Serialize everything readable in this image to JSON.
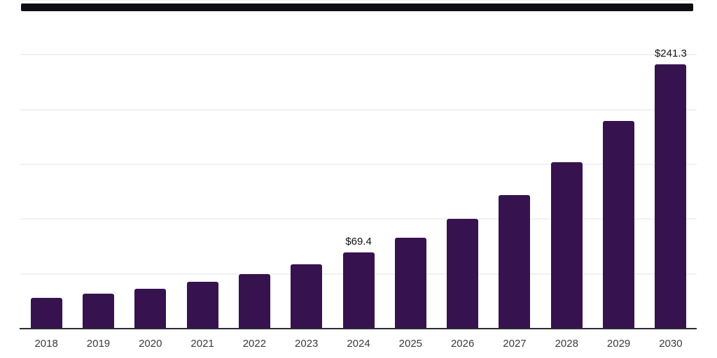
{
  "chart_data": {
    "type": "bar",
    "title": "",
    "xlabel": "",
    "ylabel": "",
    "categories": [
      "2018",
      "2019",
      "2020",
      "2021",
      "2022",
      "2023",
      "2024",
      "2025",
      "2026",
      "2027",
      "2028",
      "2029",
      "2030"
    ],
    "values": [
      28.2,
      32.0,
      36.7,
      43.1,
      50.0,
      58.5,
      69.4,
      83.0,
      100.4,
      121.8,
      151.8,
      189.5,
      241.3
    ],
    "labeled_points": [
      {
        "category": "2024",
        "label": "$69.4"
      },
      {
        "category": "2030",
        "label": "$241.3"
      }
    ],
    "currency_prefix": "$",
    "ylim": [
      0,
      300
    ],
    "gridline_interval": 50,
    "gridlines_at": [
      50,
      100,
      150,
      200,
      250,
      300
    ],
    "y_axis_tick_labels_visible": false,
    "legend": "none",
    "grid": "horizontal-light"
  },
  "style": {
    "background_color": "#ffffff",
    "bar_color": "#36124E",
    "top_bar_color": "#0d0d12",
    "gridline_color": "#f1f1f1",
    "axis_line_color": "#2e2a33",
    "value_label_color": "#111111",
    "tick_label_color": "#3b3b3b"
  }
}
